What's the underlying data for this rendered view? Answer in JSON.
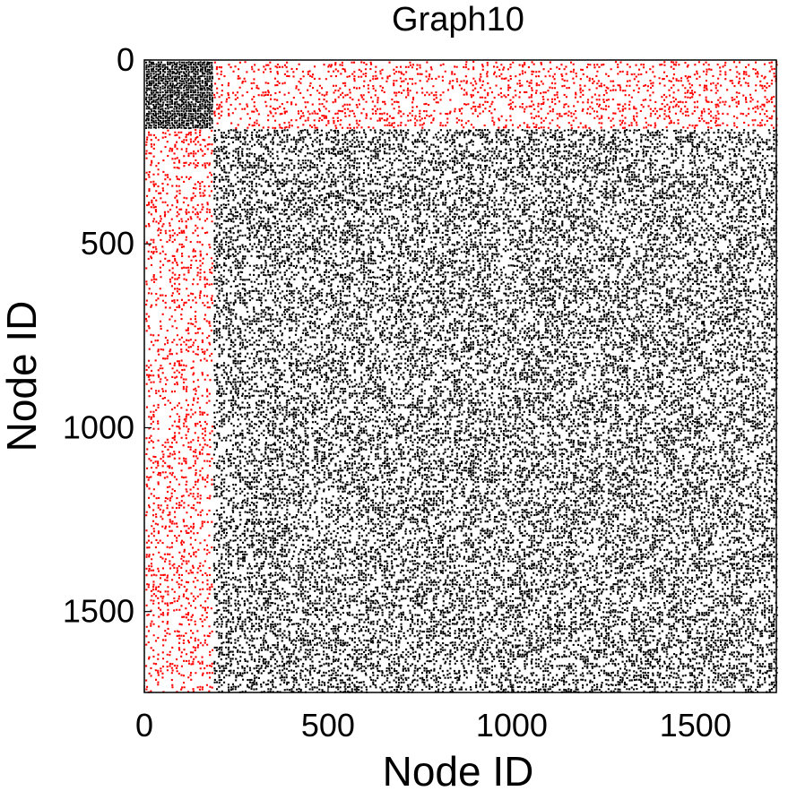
{
  "chart_data": {
    "type": "scatter",
    "title": "Graph10",
    "xlabel": "Node ID",
    "ylabel": "Node ID",
    "xlim": [
      0,
      1720
    ],
    "ylim": [
      0,
      1720
    ],
    "y_axis_inverted": true,
    "grid": false,
    "legend": "none",
    "x_ticks": [
      0,
      500,
      1000,
      1500
    ],
    "y_ticks": [
      0,
      500,
      1000,
      1500
    ],
    "x_tick_labels": [
      "0",
      "500",
      "1000",
      "1500"
    ],
    "y_tick_labels": [
      "0",
      "500",
      "1000",
      "1500"
    ],
    "description": "adjacency matrix spy plot; cross-block edges in red, within-block edges in black",
    "series": [
      {
        "color": "#000000",
        "blocks": [
          {
            "x_range": [
              0,
              185
            ],
            "y_range": [
              0,
              185
            ],
            "density": "very high"
          },
          {
            "x_range": [
              185,
              1720
            ],
            "y_range": [
              185,
              1720
            ],
            "density": "medium"
          }
        ]
      },
      {
        "color": "#ff0000",
        "blocks": [
          {
            "x_range": [
              185,
              1720
            ],
            "y_range": [
              0,
              185
            ],
            "density": "low"
          },
          {
            "x_range": [
              0,
              185
            ],
            "y_range": [
              185,
              1720
            ],
            "density": "low"
          }
        ]
      }
    ]
  }
}
